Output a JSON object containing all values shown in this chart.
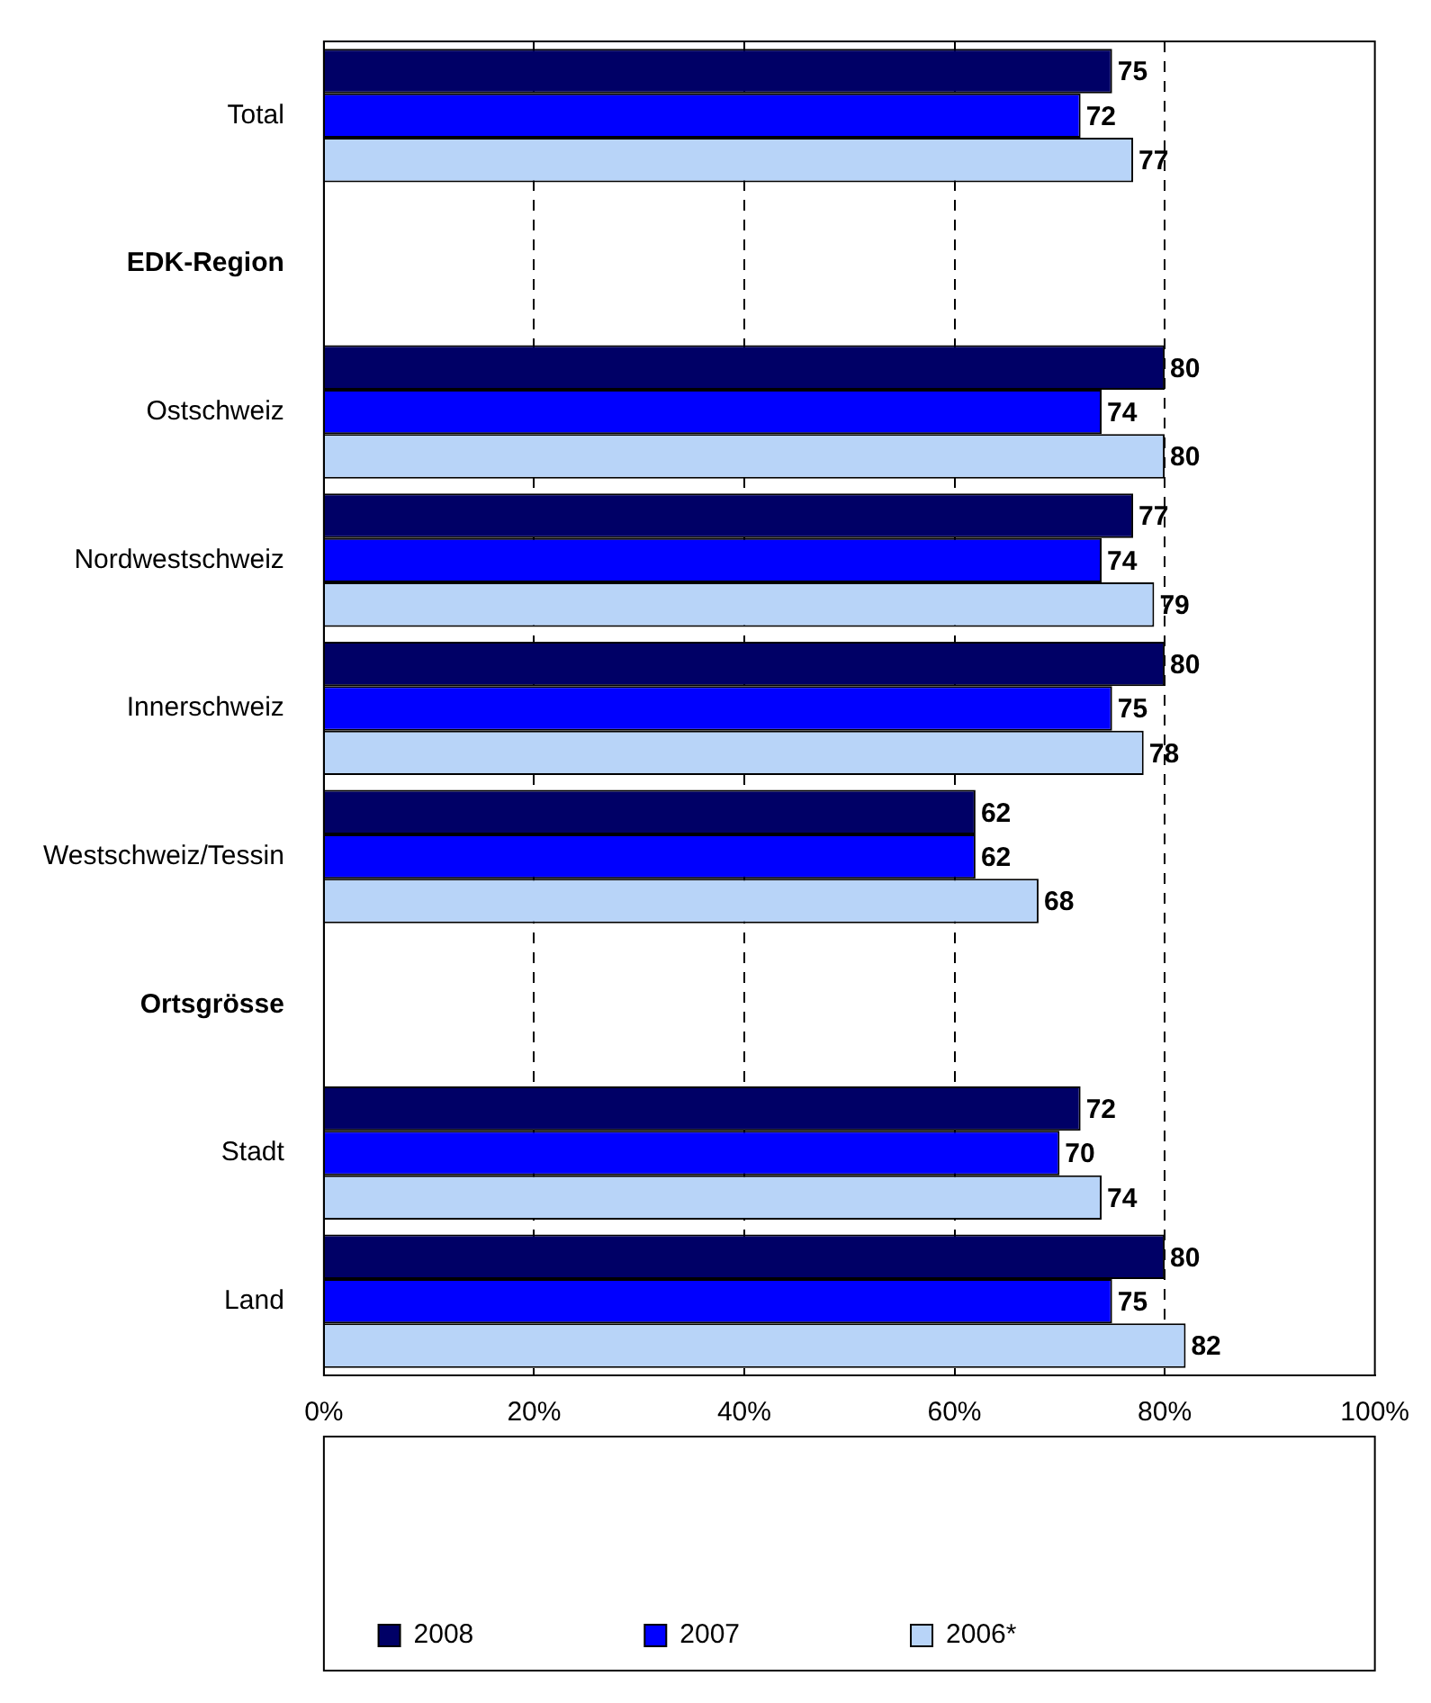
{
  "chart_data": {
    "type": "bar",
    "orientation": "horizontal",
    "categories": [
      "Total",
      "EDK-Region",
      "Ostschweiz",
      "Nordwestschweiz",
      "Innerschweiz",
      "Westschweiz/Tessin",
      "Ortsgrösse",
      "Stadt",
      "Land"
    ],
    "series": [
      {
        "name": "2008",
        "color": "#000066",
        "values": [
          75,
          null,
          80,
          77,
          80,
          62,
          null,
          72,
          80
        ]
      },
      {
        "name": "2007",
        "color": "#0000ff",
        "values": [
          72,
          null,
          74,
          74,
          75,
          62,
          null,
          70,
          75
        ]
      },
      {
        "name": "2006*",
        "color": "#b8d4f8",
        "values": [
          77,
          null,
          80,
          79,
          78,
          68,
          null,
          74,
          82
        ]
      }
    ],
    "xlim": [
      0,
      100
    ],
    "xticks": [
      {
        "value": 0,
        "label": "0%"
      },
      {
        "value": 20,
        "label": "20%"
      },
      {
        "value": 40,
        "label": "40%"
      },
      {
        "value": 60,
        "label": "60%"
      },
      {
        "value": 80,
        "label": "80%"
      },
      {
        "value": 100,
        "label": "100%"
      }
    ],
    "grid": "x",
    "legend": "bottom",
    "data_labels": true
  }
}
